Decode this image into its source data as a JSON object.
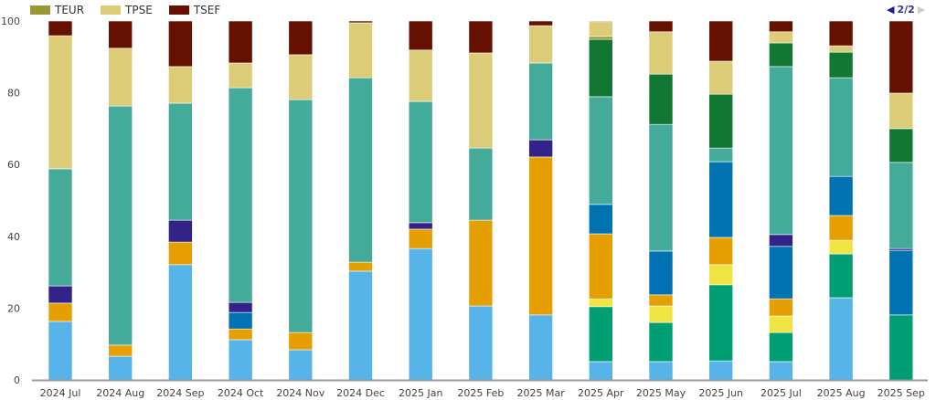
{
  "legend": [
    {
      "label": "TEUR",
      "color": "#999933"
    },
    {
      "label": "TPSE",
      "color": "#DDCC77"
    },
    {
      "label": "TSEF",
      "color": "#661100"
    }
  ],
  "pager": {
    "prev": "◀",
    "text": "2/2",
    "next": "▶"
  },
  "chart_data": {
    "type": "bar",
    "stacked": true,
    "title": "",
    "xlabel": "",
    "ylabel": "",
    "ylim": [
      0,
      100
    ],
    "yticks": [
      "0",
      "20",
      "40",
      "60",
      "80",
      "100"
    ],
    "legend_position": "top-left",
    "categories": [
      "2024 Jul",
      "2024 Aug",
      "2024 Sep",
      "2024 Oct",
      "2024 Nov",
      "2024 Dec",
      "2025 Jan",
      "2025 Feb",
      "2025 Mar",
      "2025 Apr",
      "2025 May",
      "2025 Jun",
      "2025 Jul",
      "2025 Aug",
      "2025 Sep"
    ],
    "series": [
      {
        "color": "#56B4E9",
        "values": [
          16.3,
          6.6,
          32.1,
          11.2,
          8.4,
          30.3,
          36.6,
          20.6,
          18.1,
          5.1,
          5.1,
          5.3,
          5.1,
          22.9,
          0
        ]
      },
      {
        "color": "#009E73",
        "values": [
          0,
          0,
          0,
          0,
          0,
          0,
          0,
          0,
          0,
          15.3,
          10.9,
          21.2,
          8.1,
          12.2,
          18.1
        ]
      },
      {
        "color": "#F0E442",
        "values": [
          0,
          0,
          0,
          0,
          0,
          0,
          0,
          0,
          0,
          2.2,
          4.6,
          5.6,
          4.6,
          3.8,
          0
        ]
      },
      {
        "color": "#E69F00",
        "values": [
          5.1,
          3.1,
          6.3,
          3.0,
          4.8,
          2.5,
          5.4,
          23.9,
          44.0,
          18.1,
          3.1,
          7.6,
          4.8,
          6.9,
          0
        ]
      },
      {
        "color": "#0072B2",
        "values": [
          0,
          0,
          0,
          4.6,
          0,
          0,
          0,
          0,
          0,
          8.2,
          12.2,
          21.1,
          14.6,
          10.9,
          18.0
        ]
      },
      {
        "color": "#332288",
        "values": [
          4.8,
          0,
          6.1,
          2.8,
          0,
          0,
          1.8,
          0,
          4.8,
          0,
          0,
          0,
          3.3,
          0,
          0.5
        ]
      },
      {
        "color": "#44AA99",
        "values": [
          32.6,
          66.6,
          32.6,
          59.8,
          64.9,
          51.4,
          33.8,
          20.1,
          21.4,
          30.0,
          35.3,
          3.8,
          46.8,
          27.5,
          24.0
        ]
      },
      {
        "color": "#117733",
        "values": [
          0,
          0,
          0,
          0,
          0,
          0,
          0,
          0,
          0,
          16.0,
          14.0,
          15.0,
          6.6,
          7.1,
          9.4
        ]
      },
      {
        "name": "TEUR",
        "color": "#999933",
        "values": [
          0,
          0,
          0,
          0,
          0,
          0,
          0,
          0,
          0,
          0.8,
          0,
          0,
          0,
          0,
          0
        ]
      },
      {
        "name": "TPSE",
        "color": "#DDCC77",
        "values": [
          37.1,
          16.1,
          10.2,
          6.9,
          12.5,
          15.3,
          14.3,
          26.5,
          10.4,
          4.1,
          11.8,
          9.2,
          3.1,
          1.8,
          9.9
        ]
      },
      {
        "name": "TSEF",
        "color": "#661100",
        "values": [
          4.1,
          7.6,
          12.7,
          11.7,
          9.4,
          0.5,
          8.1,
          8.9,
          1.3,
          0.2,
          3.0,
          11.2,
          3.0,
          6.9,
          20.1
        ]
      }
    ]
  }
}
